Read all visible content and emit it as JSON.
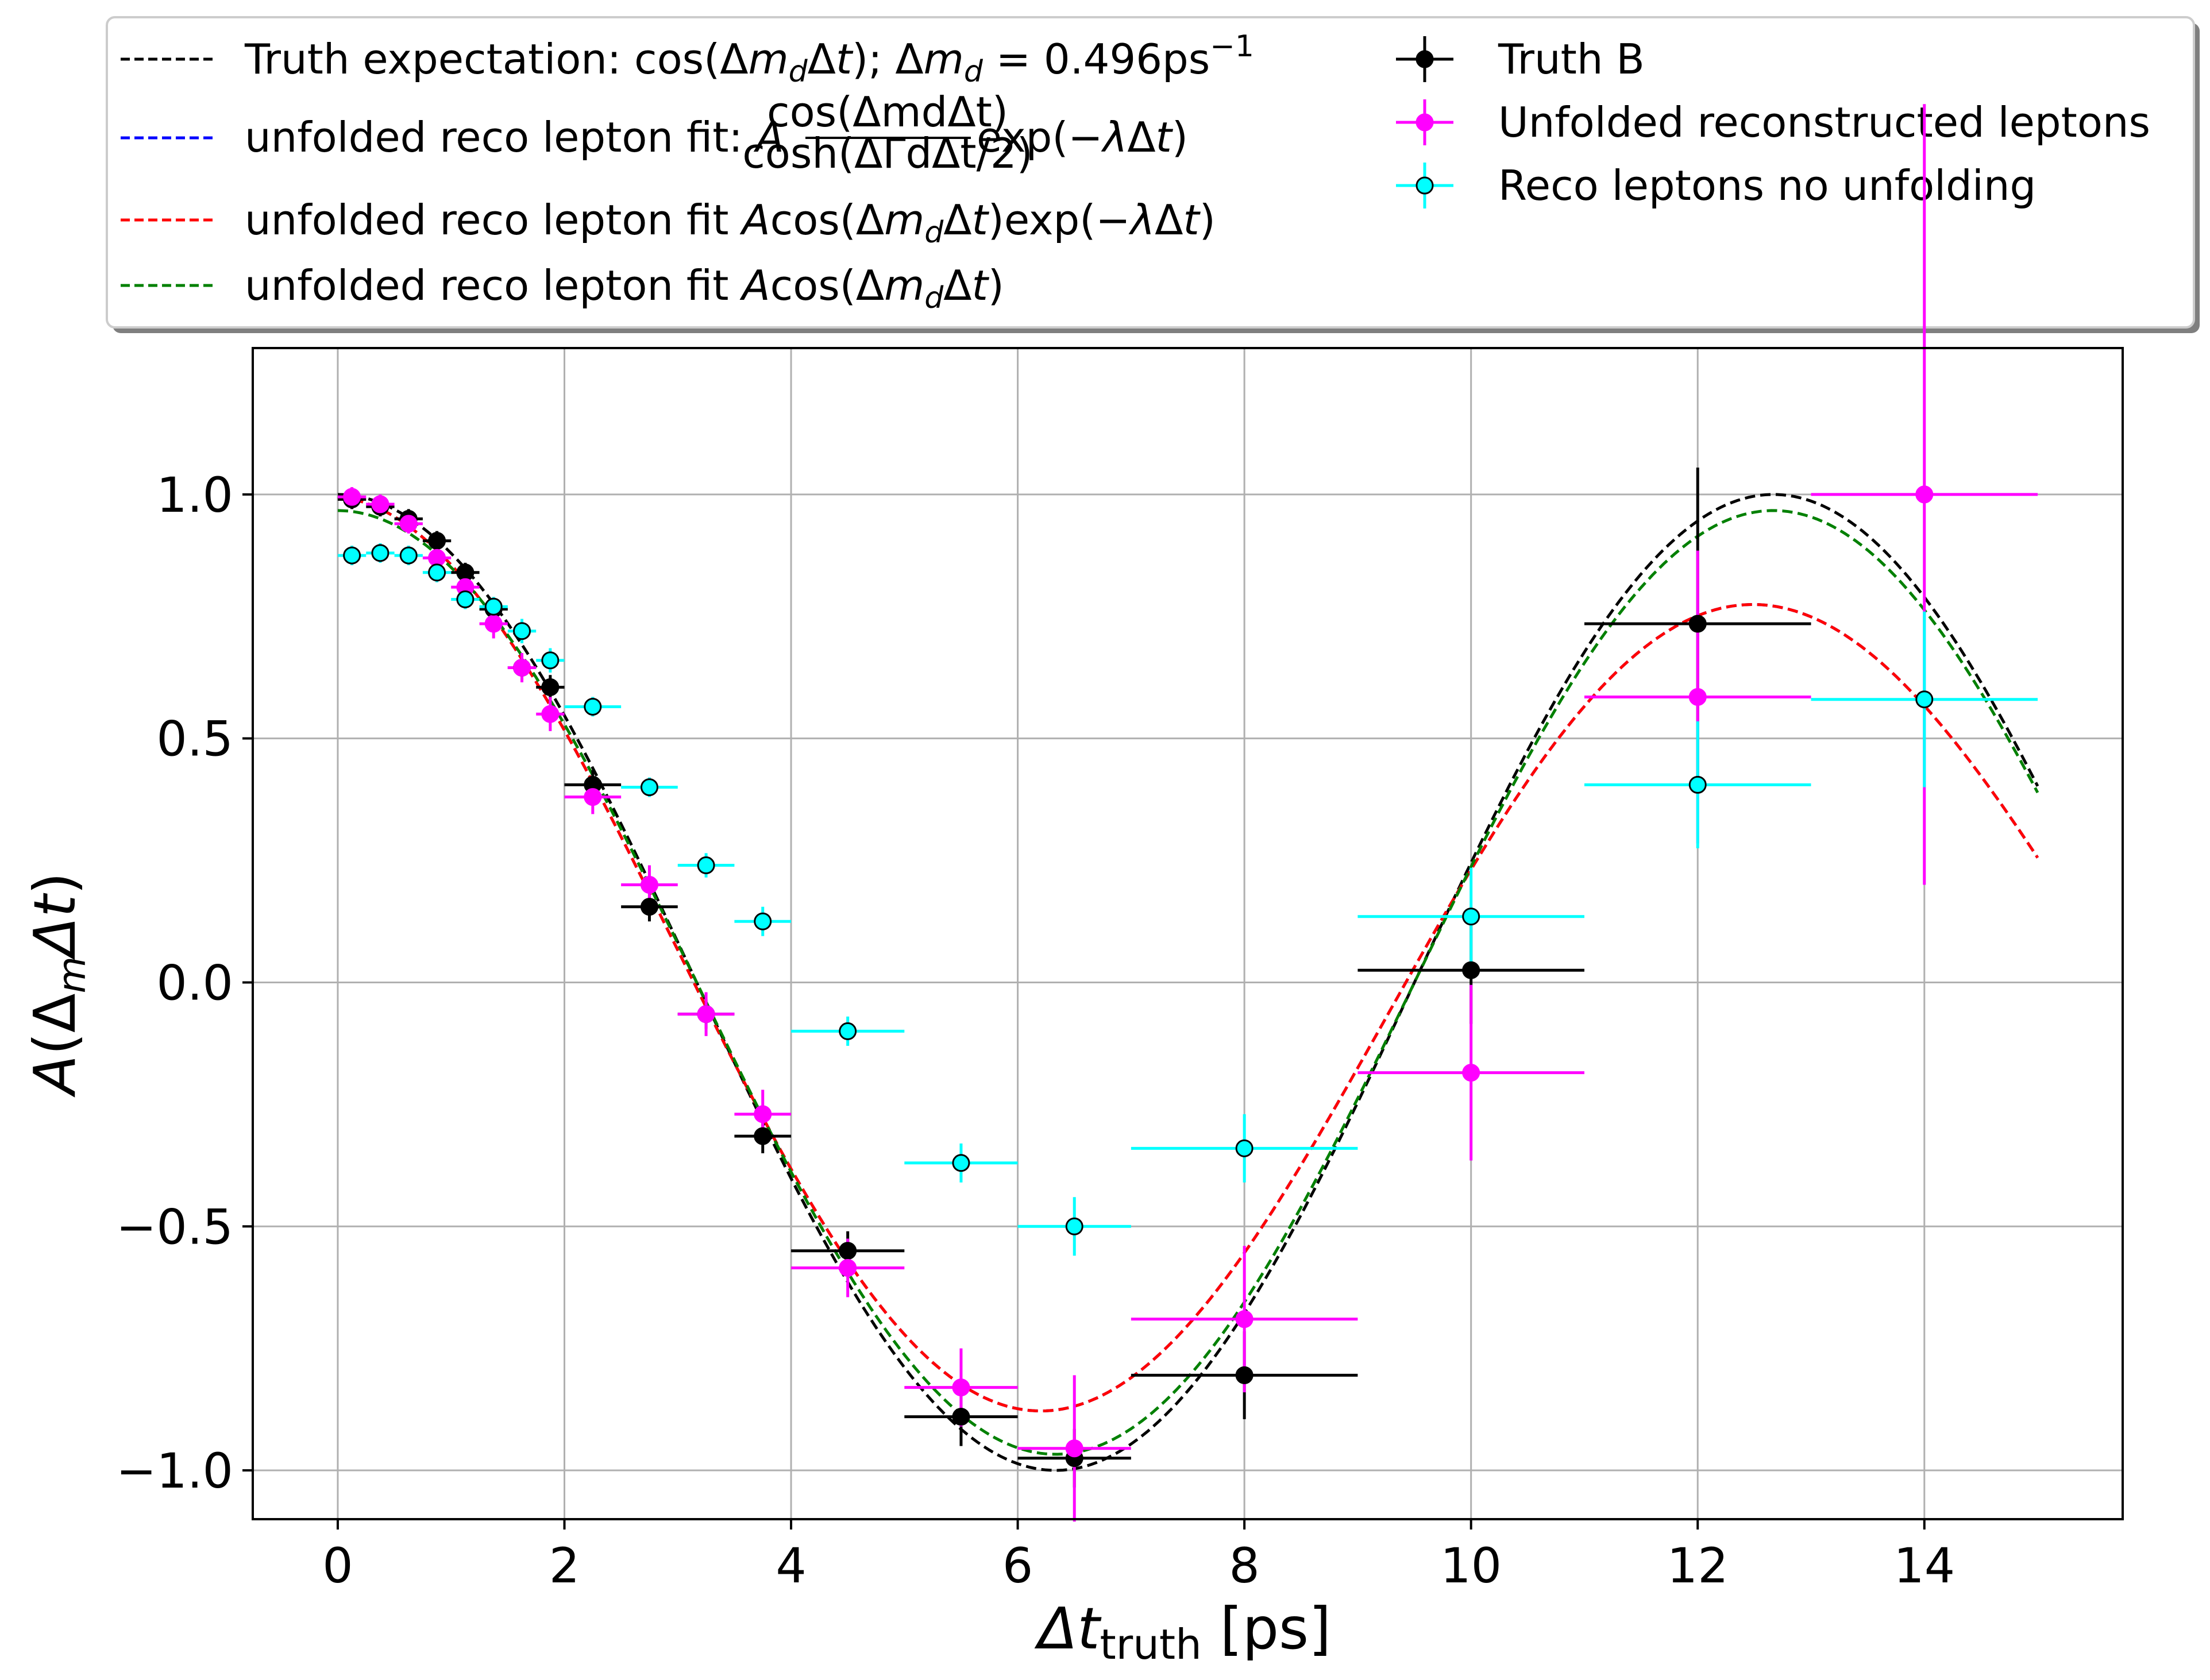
{
  "chart_data": {
    "type": "scatter",
    "xlabel": "Δt_truth [ps]",
    "ylabel": "A(Δ_{m_d}Δt)",
    "xlim": [
      -0.75,
      15.75
    ],
    "ylim": [
      -1.1,
      1.3
    ],
    "grid": true,
    "legend_position": "above plot",
    "xticks": [
      0,
      2,
      4,
      6,
      8,
      10,
      12,
      14
    ],
    "yticks": [
      -1.0,
      -0.5,
      0.0,
      0.5,
      1.0
    ],
    "xtick_labels": [
      "0",
      "2",
      "4",
      "6",
      "8",
      "10",
      "12",
      "14"
    ],
    "ytick_labels": [
      "−1.0",
      "−0.5",
      "0.0",
      "0.5",
      "1.0"
    ],
    "curves": [
      {
        "label": "Truth expectation: cos(Δm_dΔt); Δm_d = 0.496ps⁻¹",
        "color": "#000000",
        "model": "cos",
        "A": 1.0,
        "dm": 0.496,
        "lambda": 0.0,
        "x_range": [
          0,
          15
        ]
      },
      {
        "label": "unfolded reco lepton fit: A cos(Δm_dΔt)/cosh(ΔΓ_dΔt/2) exp(−λΔt)",
        "color": "#0000ff",
        "model": "cos_exp",
        "A": 0.995,
        "dm": 0.5,
        "lambda": 0.02,
        "x_range": [
          0,
          15
        ]
      },
      {
        "label": "unfolded reco lepton fit Acos(Δm_dΔt)exp(−λΔt)",
        "color": "#ff0000",
        "model": "cos_exp",
        "A": 0.995,
        "dm": 0.5,
        "lambda": 0.02,
        "x_range": [
          0,
          15
        ]
      },
      {
        "label": "unfolded reco lepton fit Acos(Δm_dΔt)",
        "color": "#008000",
        "model": "cos",
        "A": 0.967,
        "dm": 0.496,
        "lambda": 0.0,
        "x_range": [
          0,
          15
        ]
      }
    ],
    "series": [
      {
        "name": "Truth B",
        "color": "#000000",
        "points": [
          {
            "x": 0.125,
            "y": 0.99,
            "xerr": 0.125,
            "yerr": 0.02
          },
          {
            "x": 0.375,
            "y": 0.975,
            "xerr": 0.125,
            "yerr": 0.02
          },
          {
            "x": 0.625,
            "y": 0.95,
            "xerr": 0.125,
            "yerr": 0.02
          },
          {
            "x": 0.875,
            "y": 0.905,
            "xerr": 0.125,
            "yerr": 0.02
          },
          {
            "x": 1.125,
            "y": 0.84,
            "xerr": 0.125,
            "yerr": 0.02
          },
          {
            "x": 1.375,
            "y": 0.765,
            "xerr": 0.125,
            "yerr": 0.02
          },
          {
            "x": 1.625,
            "y": 0.645,
            "xerr": 0.125,
            "yerr": 0.025
          },
          {
            "x": 1.875,
            "y": 0.605,
            "xerr": 0.125,
            "yerr": 0.025
          },
          {
            "x": 2.25,
            "y": 0.405,
            "xerr": 0.25,
            "yerr": 0.03
          },
          {
            "x": 2.75,
            "y": 0.155,
            "xerr": 0.25,
            "yerr": 0.03
          },
          {
            "x": 3.25,
            "y": -0.065,
            "xerr": 0.25,
            "yerr": 0.03
          },
          {
            "x": 3.75,
            "y": -0.315,
            "xerr": 0.25,
            "yerr": 0.035
          },
          {
            "x": 4.5,
            "y": -0.55,
            "xerr": 0.5,
            "yerr": 0.04
          },
          {
            "x": 5.5,
            "y": -0.89,
            "xerr": 0.5,
            "yerr": 0.06
          },
          {
            "x": 6.5,
            "y": -0.975,
            "xerr": 0.5,
            "yerr": 0.06
          },
          {
            "x": 8.0,
            "y": -0.805,
            "xerr": 1.0,
            "yerr": 0.09
          },
          {
            "x": 10.0,
            "y": 0.025,
            "xerr": 1.0,
            "yerr": 0.11
          },
          {
            "x": 12.0,
            "y": 0.735,
            "xerr": 1.0,
            "yerr": 0.32
          }
        ]
      },
      {
        "name": "Unfolded reconstructed leptons",
        "color": "#ff00ff",
        "points": [
          {
            "x": 0.125,
            "y": 0.995,
            "xerr": 0.125,
            "yerr": 0.02
          },
          {
            "x": 0.375,
            "y": 0.98,
            "xerr": 0.125,
            "yerr": 0.02
          },
          {
            "x": 0.625,
            "y": 0.94,
            "xerr": 0.125,
            "yerr": 0.02
          },
          {
            "x": 0.875,
            "y": 0.87,
            "xerr": 0.125,
            "yerr": 0.025
          },
          {
            "x": 1.125,
            "y": 0.81,
            "xerr": 0.125,
            "yerr": 0.025
          },
          {
            "x": 1.375,
            "y": 0.735,
            "xerr": 0.125,
            "yerr": 0.03
          },
          {
            "x": 1.625,
            "y": 0.645,
            "xerr": 0.125,
            "yerr": 0.03
          },
          {
            "x": 1.875,
            "y": 0.55,
            "xerr": 0.125,
            "yerr": 0.035
          },
          {
            "x": 2.25,
            "y": 0.38,
            "xerr": 0.25,
            "yerr": 0.035
          },
          {
            "x": 2.75,
            "y": 0.2,
            "xerr": 0.25,
            "yerr": 0.04
          },
          {
            "x": 3.25,
            "y": -0.065,
            "xerr": 0.25,
            "yerr": 0.045
          },
          {
            "x": 3.75,
            "y": -0.27,
            "xerr": 0.25,
            "yerr": 0.05
          },
          {
            "x": 4.5,
            "y": -0.585,
            "xerr": 0.5,
            "yerr": 0.06
          },
          {
            "x": 5.5,
            "y": -0.83,
            "xerr": 0.5,
            "yerr": 0.08
          },
          {
            "x": 6.5,
            "y": -0.955,
            "xerr": 0.5,
            "yerr": 0.15
          },
          {
            "x": 8.0,
            "y": -0.69,
            "xerr": 1.0,
            "yerr": 0.15
          },
          {
            "x": 10.0,
            "y": -0.185,
            "xerr": 1.0,
            "yerr": 0.18
          },
          {
            "x": 12.0,
            "y": 0.585,
            "xerr": 1.0,
            "yerr": 0.3
          },
          {
            "x": 14.0,
            "y": 1.0,
            "xerr": 1.0,
            "yerr": 0.8
          }
        ]
      },
      {
        "name": "Reco leptons no unfolding",
        "color": "#00ffff",
        "points": [
          {
            "x": 0.125,
            "y": 0.875,
            "xerr": 0.125,
            "yerr": 0.02
          },
          {
            "x": 0.375,
            "y": 0.88,
            "xerr": 0.125,
            "yerr": 0.02
          },
          {
            "x": 0.625,
            "y": 0.875,
            "xerr": 0.125,
            "yerr": 0.02
          },
          {
            "x": 0.875,
            "y": 0.84,
            "xerr": 0.125,
            "yerr": 0.02
          },
          {
            "x": 1.125,
            "y": 0.785,
            "xerr": 0.125,
            "yerr": 0.02
          },
          {
            "x": 1.375,
            "y": 0.77,
            "xerr": 0.125,
            "yerr": 0.02
          },
          {
            "x": 1.625,
            "y": 0.72,
            "xerr": 0.125,
            "yerr": 0.025
          },
          {
            "x": 1.875,
            "y": 0.66,
            "xerr": 0.125,
            "yerr": 0.025
          },
          {
            "x": 2.25,
            "y": 0.565,
            "xerr": 0.25,
            "yerr": 0.02
          },
          {
            "x": 2.75,
            "y": 0.4,
            "xerr": 0.25,
            "yerr": 0.02
          },
          {
            "x": 3.25,
            "y": 0.24,
            "xerr": 0.25,
            "yerr": 0.025
          },
          {
            "x": 3.75,
            "y": 0.125,
            "xerr": 0.25,
            "yerr": 0.03
          },
          {
            "x": 4.5,
            "y": -0.1,
            "xerr": 0.5,
            "yerr": 0.03
          },
          {
            "x": 5.5,
            "y": -0.37,
            "xerr": 0.5,
            "yerr": 0.04
          },
          {
            "x": 6.5,
            "y": -0.5,
            "xerr": 0.5,
            "yerr": 0.06
          },
          {
            "x": 8.0,
            "y": -0.34,
            "xerr": 1.0,
            "yerr": 0.07
          },
          {
            "x": 10.0,
            "y": 0.135,
            "xerr": 1.0,
            "yerr": 0.1
          },
          {
            "x": 12.0,
            "y": 0.405,
            "xerr": 1.0,
            "yerr": 0.13
          },
          {
            "x": 14.0,
            "y": 0.58,
            "xerr": 1.0,
            "yerr": 0.18
          }
        ]
      }
    ],
    "legend": {
      "left_entries": [
        {
          "text": "Truth expectation: cos(Δm_dΔt); Δm_d = 0.496ps⁻¹",
          "color": "#000000"
        },
        {
          "text": "unfolded reco lepton fit: A cos(Δm_dΔt)/cosh(ΔΓ_dΔt/2) exp(−λΔt)",
          "color": "#0000ff"
        },
        {
          "text": "unfolded reco lepton fit Acos(Δm_dΔt)exp(−λΔt)",
          "color": "#ff0000"
        },
        {
          "text": "unfolded reco lepton fit Acos(Δm_dΔt)",
          "color": "#008000"
        }
      ],
      "right_entries": [
        {
          "text": "Truth B",
          "color": "#000000"
        },
        {
          "text": "Unfolded reconstructed leptons",
          "color": "#ff00ff"
        },
        {
          "text": "Reco leptons no unfolding",
          "color": "#00ffff"
        }
      ]
    }
  }
}
